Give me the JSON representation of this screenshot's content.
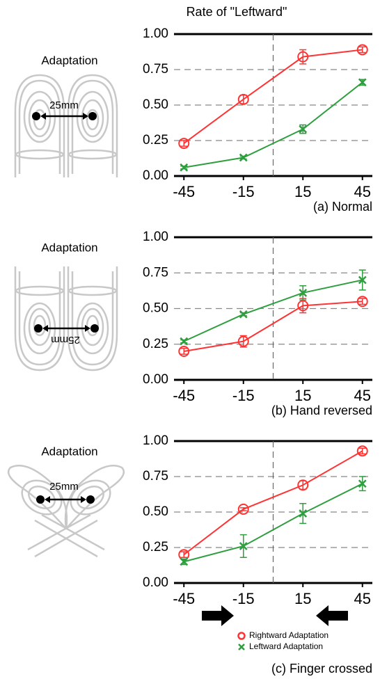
{
  "chart_data": [
    {
      "type": "line",
      "ylabel": "Rate of \"Leftward\"",
      "caption": "(a) Normal",
      "illustration": {
        "label": "Adaptation",
        "distance": "25mm"
      },
      "x": [
        -45,
        -15,
        15,
        45
      ],
      "xlim": [
        -50,
        50
      ],
      "xticks": [
        -45,
        -15,
        15,
        45
      ],
      "xref": 0,
      "ylim": [
        0,
        1
      ],
      "yticks": [
        {
          "value": 0,
          "label": "0.00"
        },
        {
          "value": 0.25,
          "label": "0.25"
        },
        {
          "value": 0.5,
          "label": "0.50"
        },
        {
          "value": 0.75,
          "label": "0.75"
        },
        {
          "value": 1,
          "label": "1.00"
        }
      ],
      "grid": true,
      "series": [
        {
          "color": "#ff3333",
          "marker": "circle",
          "values": [
            0.23,
            0.54,
            0.84,
            0.89
          ],
          "errors": [
            0.02,
            0.03,
            0.05,
            0.02
          ]
        },
        {
          "color": "#2e9e3e",
          "marker": "x",
          "values": [
            0.06,
            0.13,
            0.33,
            0.66
          ],
          "errors": [
            0.01,
            0.01,
            0.03,
            0.02
          ]
        }
      ]
    },
    {
      "type": "line",
      "caption": "(b) Hand reversed",
      "illustration": {
        "label": "Adaptation",
        "distance": "25mm",
        "reversed": true
      },
      "x": [
        -45,
        -15,
        15,
        45
      ],
      "xlim": [
        -50,
        50
      ],
      "xticks": [
        -45,
        -15,
        15,
        45
      ],
      "xref": 0,
      "ylim": [
        0,
        1
      ],
      "yticks": [
        {
          "value": 0,
          "label": "0.00"
        },
        {
          "value": 0.25,
          "label": "0.25"
        },
        {
          "value": 0.5,
          "label": "0.50"
        },
        {
          "value": 0.75,
          "label": "0.75"
        },
        {
          "value": 1,
          "label": "1.00"
        }
      ],
      "grid": true,
      "series": [
        {
          "color": "#ff3333",
          "marker": "circle",
          "values": [
            0.2,
            0.27,
            0.52,
            0.55
          ],
          "errors": [
            0.02,
            0.04,
            0.05,
            0.02
          ]
        },
        {
          "color": "#2e9e3e",
          "marker": "x",
          "values": [
            0.27,
            0.46,
            0.61,
            0.7
          ],
          "errors": [
            0.01,
            0.01,
            0.05,
            0.07
          ]
        }
      ]
    },
    {
      "type": "line",
      "caption": "(c) Finger crossed",
      "illustration": {
        "label": "Adaptation",
        "distance": "25mm"
      },
      "x": [
        -45,
        -15,
        15,
        45
      ],
      "xlim": [
        -50,
        50
      ],
      "xticks": [
        -45,
        -15,
        15,
        45
      ],
      "xref": 0,
      "ylim": [
        0,
        1
      ],
      "yticks": [
        {
          "value": 0,
          "label": "0.00"
        },
        {
          "value": 0.25,
          "label": "0.25"
        },
        {
          "value": 0.5,
          "label": "0.50"
        },
        {
          "value": 0.75,
          "label": "0.75"
        },
        {
          "value": 1,
          "label": "1.00"
        }
      ],
      "grid": true,
      "legend": "lower right",
      "series": [
        {
          "name": "Rightward Adaptation",
          "color": "#ff3333",
          "marker": "circle",
          "values": [
            0.2,
            0.52,
            0.69,
            0.93
          ],
          "errors": [
            0.02,
            0.01,
            0.03,
            0.02
          ]
        },
        {
          "name": "Leftward Adaptation",
          "color": "#2e9e3e",
          "marker": "x",
          "values": [
            0.15,
            0.26,
            0.49,
            0.7
          ],
          "errors": [
            0.02,
            0.08,
            0.07,
            0.05
          ]
        }
      ]
    }
  ]
}
